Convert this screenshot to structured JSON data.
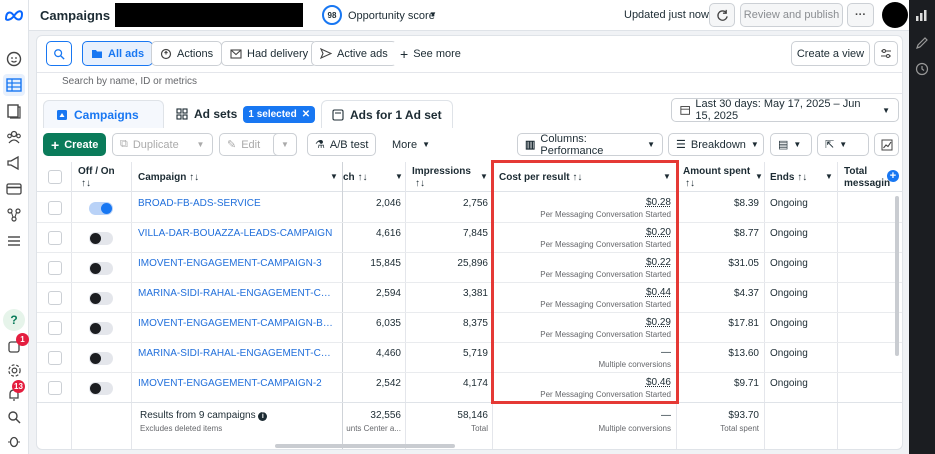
{
  "topbar": {
    "title": "Campaigns",
    "opportunity_score": "98",
    "opportunity_label": "Opportunity score",
    "updated": "Updated just now",
    "review_publish": "Review and publish"
  },
  "filters": {
    "all_ads": "All ads",
    "actions": "Actions",
    "had_delivery": "Had delivery",
    "active_ads": "Active ads",
    "see_more": "See more",
    "create_view": "Create a view",
    "search_placeholder": "Search by name, ID or metrics"
  },
  "tabs": {
    "campaigns": "Campaigns",
    "ad_sets": "Ad sets",
    "selected": "1 selected",
    "ads": "Ads for 1 Ad set",
    "date_range": "Last 30 days: May 17, 2025 – Jun 15, 2025"
  },
  "toolbar": {
    "create": "Create",
    "duplicate": "Duplicate",
    "edit": "Edit",
    "ab_test": "A/B test",
    "more": "More",
    "columns": "Columns: Performance",
    "breakdown": "Breakdown"
  },
  "table": {
    "headers": {
      "off_on": "Off / On",
      "off_on_sort": "↑↓",
      "campaign": "Campaign ↑↓",
      "reach": "ch ↑↓",
      "impressions": "Impressions",
      "impressions_sort": "↑↓",
      "cost_per_result": "Cost per result ↑↓",
      "amount_spent": "Amount spent",
      "amount_spent_sort": "↑↓",
      "ends": "Ends ↑↓",
      "total_messaging": "Total",
      "total_messaging_2": "messagin"
    },
    "rows": [
      {
        "on": true,
        "campaign": "BROAD-FB-ADS-SERVICE",
        "reach": "2,046",
        "impressions": "2,756",
        "cost": "$0.28",
        "cost_sub": "Per Messaging Conversation Started",
        "spent": "$8.39",
        "ends": "Ongoing"
      },
      {
        "on": false,
        "campaign": "VILLA-DAR-BOUAZZA-LEADS-CAMPAIGN",
        "reach": "4,616",
        "impressions": "7,845",
        "cost": "$0.20",
        "cost_sub": "Per Messaging Conversation Started",
        "spent": "$8.77",
        "ends": "Ongoing"
      },
      {
        "on": false,
        "campaign": "IMOVENT-ENGAGEMENT-CAMPAIGN-3",
        "reach": "15,845",
        "impressions": "25,896",
        "cost": "$0.22",
        "cost_sub": "Per Messaging Conversation Started",
        "spent": "$31.05",
        "ends": "Ongoing"
      },
      {
        "on": false,
        "campaign": "MARINA-SIDI-RAHAL-ENGAGEMENT-CAMP...",
        "reach": "2,594",
        "impressions": "3,381",
        "cost": "$0.44",
        "cost_sub": "Per Messaging Conversation Started",
        "spent": "$4.37",
        "ends": "Ongoing"
      },
      {
        "on": false,
        "campaign": "IMOVENT-ENGAGEMENT-CAMPAIGN-BUYE...",
        "reach": "6,035",
        "impressions": "8,375",
        "cost": "$0.29",
        "cost_sub": "Per Messaging Conversation Started",
        "spent": "$17.81",
        "ends": "Ongoing"
      },
      {
        "on": false,
        "campaign": "MARINA-SIDI-RAHAL-ENGAGEMENT-CAMP...",
        "reach": "4,460",
        "impressions": "5,719",
        "cost": "—",
        "cost_sub": "Multiple conversions",
        "spent": "$13.60",
        "ends": "Ongoing"
      },
      {
        "on": false,
        "campaign": "IMOVENT-ENGAGEMENT-CAMPAIGN-2",
        "reach": "2,542",
        "impressions": "4,174",
        "cost": "$0.46",
        "cost_sub": "Per Messaging Conversation Started",
        "spent": "$9.71",
        "ends": "Ongoing"
      }
    ],
    "summary": {
      "label": "Results from 9 campaigns",
      "sub": "Excludes deleted items",
      "reach": "32,556",
      "reach_sub": "unts Center a...",
      "impressions": "58,146",
      "impressions_sub": "Total",
      "cost": "—",
      "cost_sub": "Multiple conversions",
      "spent": "$93.70",
      "spent_sub": "Total spent"
    }
  },
  "left_nav_badges": {
    "notifications": "1",
    "alerts": "13"
  }
}
